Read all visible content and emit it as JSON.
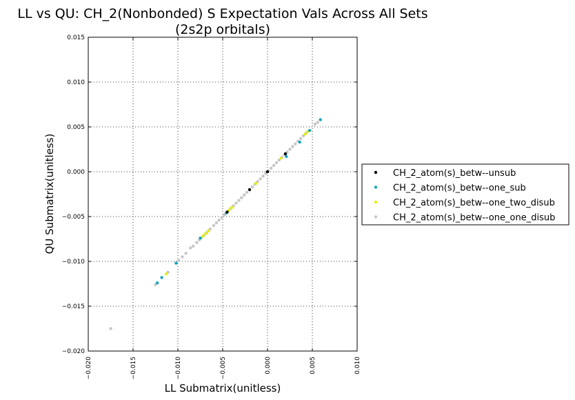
{
  "chart_data": {
    "type": "scatter",
    "title": "LL vs QU: CH_2(Nonbonded) S Expectation Vals Across All Sets",
    "subtitle": "(2s2p orbitals)",
    "xlabel": "LL Submatrix(unitless)",
    "ylabel": "QU Submatrix(unitless)",
    "xlim": [
      -0.02,
      0.01
    ],
    "ylim": [
      -0.02,
      0.015
    ],
    "xticks": [
      "−0.020",
      "−0.015",
      "−0.010",
      "−0.005",
      "0.000",
      "0.005",
      "0.010"
    ],
    "yticks": [
      "0.015",
      "0.010",
      "0.005",
      "0.000",
      "−0.005",
      "−0.010",
      "−0.015",
      "−0.020"
    ],
    "grid": true,
    "legend_position": "right",
    "series": [
      {
        "name": "CH_2_atom(s)_betw--unsub",
        "color": "#000000",
        "points": [
          [
            -0.0045,
            -0.0045
          ],
          [
            -0.002,
            -0.002
          ],
          [
            0.0,
            0.0
          ],
          [
            0.002,
            0.002
          ]
        ]
      },
      {
        "name": "CH_2_atom(s)_betw--one_sub",
        "color": "#17a6be",
        "points": [
          [
            -0.0123,
            -0.0124
          ],
          [
            -0.0118,
            -0.0118
          ],
          [
            -0.0102,
            -0.0102
          ],
          [
            -0.0075,
            -0.0074
          ],
          [
            -0.0046,
            -0.0046
          ],
          [
            0.0021,
            0.0017
          ],
          [
            0.0036,
            0.0033
          ],
          [
            0.0047,
            0.0046
          ],
          [
            0.0059,
            0.0058
          ]
        ]
      },
      {
        "name": "CH_2_atom(s)_betw--one_two_disub",
        "color": "#e3f20f",
        "points": [
          [
            -0.0113,
            -0.0114
          ],
          [
            -0.0072,
            -0.0072
          ],
          [
            -0.0069,
            -0.0069
          ],
          [
            -0.0066,
            -0.0066
          ],
          [
            -0.0043,
            -0.0043
          ],
          [
            -0.004,
            -0.004
          ],
          [
            -0.0013,
            -0.0013
          ],
          [
            0.0015,
            0.0015
          ],
          [
            0.0042,
            0.0042
          ],
          [
            0.0045,
            0.0045
          ]
        ]
      },
      {
        "name": "CH_2_atom(s)_betw--one_one_disub",
        "color": "#c6c6c6",
        "points": [
          [
            -0.0175,
            -0.0175
          ],
          [
            -0.0125,
            -0.0126
          ],
          [
            -0.0111,
            -0.0112
          ],
          [
            -0.0099,
            -0.0099
          ],
          [
            -0.0095,
            -0.0095
          ],
          [
            -0.0091,
            -0.0091
          ],
          [
            -0.0086,
            -0.0085
          ],
          [
            -0.0083,
            -0.0083
          ],
          [
            -0.0079,
            -0.0079
          ],
          [
            -0.0076,
            -0.0076
          ],
          [
            -0.0074,
            -0.0074
          ],
          [
            -0.0071,
            -0.0071
          ],
          [
            -0.0068,
            -0.0068
          ],
          [
            -0.0064,
            -0.0064
          ],
          [
            -0.006,
            -0.006
          ],
          [
            -0.0057,
            -0.0057
          ],
          [
            -0.0054,
            -0.0054
          ],
          [
            -0.0051,
            -0.0051
          ],
          [
            -0.0048,
            -0.0048
          ],
          [
            -0.0044,
            -0.0044
          ],
          [
            -0.0041,
            -0.0041
          ],
          [
            -0.0038,
            -0.0038
          ],
          [
            -0.0035,
            -0.0035
          ],
          [
            -0.0032,
            -0.0032
          ],
          [
            -0.0029,
            -0.0029
          ],
          [
            -0.0026,
            -0.0026
          ],
          [
            -0.0023,
            -0.0023
          ],
          [
            -0.002,
            -0.002
          ],
          [
            -0.0017,
            -0.0017
          ],
          [
            -0.0014,
            -0.0014
          ],
          [
            -0.0011,
            -0.0011
          ],
          [
            -0.0008,
            -0.0008
          ],
          [
            -0.0005,
            -0.0005
          ],
          [
            -0.0002,
            -0.0002
          ],
          [
            0.0001,
            0.0001
          ],
          [
            0.0004,
            0.0004
          ],
          [
            0.0007,
            0.0007
          ],
          [
            0.001,
            0.001
          ],
          [
            0.0013,
            0.0013
          ],
          [
            0.0016,
            0.0016
          ],
          [
            0.0019,
            0.0019
          ],
          [
            0.0022,
            0.0022
          ],
          [
            0.0025,
            0.0025
          ],
          [
            0.0028,
            0.0028
          ],
          [
            0.0031,
            0.0031
          ],
          [
            0.0034,
            0.0034
          ],
          [
            0.0037,
            0.0037
          ],
          [
            0.004,
            0.004
          ],
          [
            0.0043,
            0.0043
          ],
          [
            0.0053,
            0.0053
          ],
          [
            0.0056,
            0.0055
          ]
        ]
      }
    ]
  }
}
